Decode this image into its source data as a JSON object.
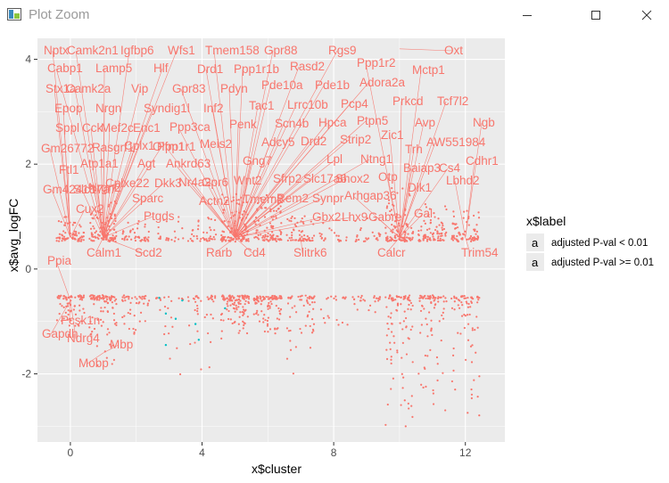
{
  "window": {
    "title": "Plot Zoom",
    "icon": "chart-window-icon"
  },
  "colors": {
    "sig": "#f8766d",
    "nonsig": "#00bfc4",
    "panel": "#ebebeb",
    "grid": "#ffffff"
  },
  "chart_data": {
    "type": "scatter",
    "xlabel": "x$cluster",
    "ylabel": "x$avg_logFC",
    "xlim": [
      -1,
      13.2
    ],
    "ylim": [
      -3.3,
      4.4
    ],
    "xticks": [
      0,
      4,
      8,
      12
    ],
    "yticks": [
      -2,
      0,
      2,
      4
    ],
    "legend": {
      "title": "x$label",
      "position": "right",
      "entries": [
        {
          "key": "a",
          "label": "adjusted P-val < 0.01",
          "color": "#f8766d"
        },
        {
          "key": "a",
          "label": "adjusted P-val >= 0.01",
          "color": "#00bfc4"
        }
      ]
    },
    "point_groups": [
      {
        "cluster": 0,
        "n": 70,
        "pos": [
          0.52,
          1.0
        ],
        "neg": [
          -1.05,
          -0.5
        ],
        "label": "adjusted P-val < 0.01"
      },
      {
        "cluster": 1,
        "n": 95,
        "pos": [
          0.52,
          1.3
        ],
        "neg": [
          -1.8,
          -0.5
        ],
        "label": "adjusted P-val < 0.01"
      },
      {
        "cluster": 2,
        "n": 45,
        "pos": [
          0.52,
          0.9
        ],
        "neg": [
          -1.3,
          -0.5
        ],
        "label": "adjusted P-val < 0.01"
      },
      {
        "cluster": 3,
        "n": 22,
        "pos": [
          0.52,
          1.0
        ],
        "neg": [
          -2.4,
          -0.5
        ],
        "label": "adjusted P-val < 0.01"
      },
      {
        "cluster": 4,
        "n": 40,
        "pos": [
          0.52,
          1.0
        ],
        "neg": [
          -1.9,
          -0.5
        ],
        "label": "adjusted P-val < 0.01"
      },
      {
        "cluster": 5,
        "n": 110,
        "pos": [
          0.52,
          1.4
        ],
        "neg": [
          -1.3,
          -0.5
        ],
        "label": "adjusted P-val < 0.01"
      },
      {
        "cluster": 6,
        "n": 100,
        "pos": [
          0.52,
          1.4
        ],
        "neg": [
          -1.2,
          -0.5
        ],
        "label": "adjusted P-val < 0.01"
      },
      {
        "cluster": 7,
        "n": 55,
        "pos": [
          0.52,
          1.0
        ],
        "neg": [
          -2.0,
          -0.5
        ],
        "label": "adjusted P-val < 0.01"
      },
      {
        "cluster": 8,
        "n": 20,
        "pos": [
          0.52,
          0.9
        ],
        "neg": [
          -1.2,
          -0.5
        ],
        "label": "adjusted P-val < 0.01"
      },
      {
        "cluster": 9,
        "n": 25,
        "pos": [
          0.52,
          0.9
        ],
        "neg": [
          -0.8,
          -0.5
        ],
        "label": "adjusted P-val < 0.01"
      },
      {
        "cluster": 10,
        "n": 95,
        "pos": [
          0.52,
          1.5
        ],
        "neg": [
          -3.0,
          -0.5
        ],
        "label": "adjusted P-val < 0.01"
      },
      {
        "cluster": 11,
        "n": 80,
        "pos": [
          0.52,
          1.2
        ],
        "neg": [
          -2.7,
          -0.5
        ],
        "label": "adjusted P-val < 0.01"
      },
      {
        "cluster": 12,
        "n": 75,
        "pos": [
          0.52,
          1.1
        ],
        "neg": [
          -2.8,
          -0.5
        ],
        "label": "adjusted P-val < 0.01"
      }
    ],
    "nonsig_points": [
      {
        "x": 2.7,
        "y": -0.55
      },
      {
        "x": 2.9,
        "y": -0.85
      },
      {
        "x": 3.4,
        "y": -0.6
      },
      {
        "x": 3.8,
        "y": -1.05
      },
      {
        "x": 3.9,
        "y": -1.35
      },
      {
        "x": 2.9,
        "y": -1.45
      },
      {
        "x": 4.7,
        "y": -0.75
      },
      {
        "x": 3.2,
        "y": -0.95
      }
    ],
    "labeled_genes": [
      {
        "gene": "Nptx",
        "x": 0,
        "y": 0.6
      },
      {
        "gene": "Camk2n1",
        "x": 1,
        "y": 0.6
      },
      {
        "gene": "Igfbp6",
        "x": 1,
        "y": 0.6
      },
      {
        "gene": "Wfs1",
        "x": 1,
        "y": 0.6
      },
      {
        "gene": "Tmem158",
        "x": 5,
        "y": 0.6
      },
      {
        "gene": "Gpr88",
        "x": 5,
        "y": 0.6
      },
      {
        "gene": "Rgs9",
        "x": 5,
        "y": 0.6
      },
      {
        "gene": "Oxt",
        "x": 10,
        "y": 4.2
      },
      {
        "gene": "Cabp1",
        "x": 1,
        "y": 0.6
      },
      {
        "gene": "Lamp5",
        "x": 1,
        "y": 0.6
      },
      {
        "gene": "Hlf",
        "x": 1,
        "y": 0.6
      },
      {
        "gene": "Drd1",
        "x": 5,
        "y": 0.6
      },
      {
        "gene": "Ppp1r1b",
        "x": 5,
        "y": 0.6
      },
      {
        "gene": "Rasd2",
        "x": 5,
        "y": 0.6
      },
      {
        "gene": "Ppp1r2",
        "x": 10,
        "y": 0.6
      },
      {
        "gene": "Mctp1",
        "x": 10,
        "y": 0.6
      },
      {
        "gene": "Stx1a",
        "x": 0,
        "y": 0.6
      },
      {
        "gene": "Camk2a",
        "x": 1,
        "y": 0.6
      },
      {
        "gene": "Vip",
        "x": 1,
        "y": 0.6
      },
      {
        "gene": "Gpr83",
        "x": 5,
        "y": 0.6
      },
      {
        "gene": "Pdyn",
        "x": 5,
        "y": 0.6
      },
      {
        "gene": "Pde10a",
        "x": 5,
        "y": 0.6
      },
      {
        "gene": "Pde1b",
        "x": 5,
        "y": 0.6
      },
      {
        "gene": "Adora2a",
        "x": 5,
        "y": 0.6
      },
      {
        "gene": "Epop",
        "x": 0,
        "y": 0.6
      },
      {
        "gene": "Nrgn",
        "x": 1,
        "y": 0.6
      },
      {
        "gene": "Syndig1l",
        "x": 1,
        "y": 0.6
      },
      {
        "gene": "Inf2",
        "x": 5,
        "y": 0.6
      },
      {
        "gene": "Tac1",
        "x": 5,
        "y": 0.6
      },
      {
        "gene": "Lrrc10b",
        "x": 5,
        "y": 0.6
      },
      {
        "gene": "Pcp4",
        "x": 5,
        "y": 0.6
      },
      {
        "gene": "Prkcd",
        "x": 10,
        "y": 0.6
      },
      {
        "gene": "Tcf7l2",
        "x": 10,
        "y": 0.6
      },
      {
        "gene": "Sppl",
        "x": 0,
        "y": 0.6
      },
      {
        "gene": "Cck",
        "x": 1,
        "y": 0.6
      },
      {
        "gene": "Mef2c",
        "x": 1,
        "y": 0.6
      },
      {
        "gene": "Enc1",
        "x": 1,
        "y": 0.6
      },
      {
        "gene": "Ppp3ca",
        "x": 5,
        "y": 0.6
      },
      {
        "gene": "Penk",
        "x": 5,
        "y": 0.6
      },
      {
        "gene": "Scn4b",
        "x": 5,
        "y": 0.6
      },
      {
        "gene": "Hpca",
        "x": 5,
        "y": 0.6
      },
      {
        "gene": "Ptpn5",
        "x": 5,
        "y": 0.6
      },
      {
        "gene": "Avp",
        "x": 10,
        "y": 0.6
      },
      {
        "gene": "Ngb",
        "x": 12,
        "y": 0.6
      },
      {
        "gene": "Zic1",
        "x": 10,
        "y": 0.6
      },
      {
        "gene": "Gm26772",
        "x": 0,
        "y": 0.6
      },
      {
        "gene": "Rasgrf1",
        "x": 1,
        "y": 0.6
      },
      {
        "gene": "Cplx1",
        "x": 1,
        "y": 0.6
      },
      {
        "gene": "Olfm1",
        "x": 1,
        "y": 0.6
      },
      {
        "gene": "Ppp1r1",
        "x": 5,
        "y": 0.6
      },
      {
        "gene": "Meis2",
        "x": 5,
        "y": 0.6
      },
      {
        "gene": "Adcy5",
        "x": 5,
        "y": 0.6
      },
      {
        "gene": "Drd2",
        "x": 5,
        "y": 0.6
      },
      {
        "gene": "Strip2",
        "x": 5,
        "y": 0.6
      },
      {
        "gene": "Trh",
        "x": 10,
        "y": 0.6
      },
      {
        "gene": "AW551984",
        "x": 10,
        "y": 0.6
      },
      {
        "gene": "Ftl1",
        "x": 0,
        "y": 0.6
      },
      {
        "gene": "Atp1a1",
        "x": 1,
        "y": 0.6
      },
      {
        "gene": "Agt",
        "x": 1,
        "y": 0.6
      },
      {
        "gene": "Ankrd63",
        "x": 5,
        "y": 0.6
      },
      {
        "gene": "Gng7",
        "x": 5,
        "y": 0.6
      },
      {
        "gene": "Lpl",
        "x": 5,
        "y": 0.6
      },
      {
        "gene": "Ntng1",
        "x": 5,
        "y": 0.6
      },
      {
        "gene": "Baiap3",
        "x": 10,
        "y": 0.6
      },
      {
        "gene": "Cs4",
        "x": 10,
        "y": 0.6
      },
      {
        "gene": "Cdhr1",
        "x": 12,
        "y": 0.6
      },
      {
        "gene": "Gm42418",
        "x": 0,
        "y": 0.6
      },
      {
        "gene": "Slc17a7",
        "x": 1,
        "y": 0.6
      },
      {
        "gene": "Nrgn2",
        "x": 1,
        "y": 0.6
      },
      {
        "gene": "Cplxe22",
        "x": 1,
        "y": 0.6
      },
      {
        "gene": "Dkk3",
        "x": 1,
        "y": 0.6
      },
      {
        "gene": "Nr4a2",
        "x": 5,
        "y": 0.6
      },
      {
        "gene": "Gpr6",
        "x": 5,
        "y": 0.6
      },
      {
        "gene": "Wnt2",
        "x": 5,
        "y": 0.6
      },
      {
        "gene": "Sfrp2",
        "x": 5,
        "y": 0.6
      },
      {
        "gene": "Slc17a6",
        "x": 5,
        "y": 0.6
      },
      {
        "gene": "Shox2",
        "x": 5,
        "y": 0.6
      },
      {
        "gene": "Otp",
        "x": 10,
        "y": 0.6
      },
      {
        "gene": "Lbhd2",
        "x": 12,
        "y": 0.6
      },
      {
        "gene": "Cux2",
        "x": 0,
        "y": 0.6
      },
      {
        "gene": "Sparc",
        "x": 1,
        "y": 0.6
      },
      {
        "gene": "Ptgds",
        "x": 1,
        "y": 0.6
      },
      {
        "gene": "Actn2",
        "x": 5,
        "y": 0.6
      },
      {
        "gene": "Tmem2",
        "x": 5,
        "y": 0.6
      },
      {
        "gene": "Rem2",
        "x": 5,
        "y": 0.6
      },
      {
        "gene": "Synpr",
        "x": 5,
        "y": 0.6
      },
      {
        "gene": "Arhgap36",
        "x": 10,
        "y": 0.6
      },
      {
        "gene": "Dlk1",
        "x": 10,
        "y": 0.6
      },
      {
        "gene": "Gbx2",
        "x": 5,
        "y": 0.6
      },
      {
        "gene": "Lhx9",
        "x": 5,
        "y": 0.6
      },
      {
        "gene": "Gabre",
        "x": 10,
        "y": 0.6
      },
      {
        "gene": "Gal",
        "x": 10,
        "y": 0.6
      },
      {
        "gene": "Calm1",
        "x": 1,
        "y": 0.6
      },
      {
        "gene": "Scd2",
        "x": 1,
        "y": 0.6
      },
      {
        "gene": "Rarb",
        "x": 5,
        "y": 0.6
      },
      {
        "gene": "Cd4",
        "x": 5,
        "y": 0.6
      },
      {
        "gene": "Slitrk6",
        "x": 7,
        "y": 0.6
      },
      {
        "gene": "Calcr",
        "x": 10,
        "y": 0.6
      },
      {
        "gene": "Trim54",
        "x": 12,
        "y": 0.6
      },
      {
        "gene": "Ppia",
        "x": 0,
        "y": -0.6
      },
      {
        "gene": "Pcsk1n",
        "x": 0,
        "y": -0.6
      },
      {
        "gene": "Gapdh",
        "x": 0,
        "y": -0.6
      },
      {
        "gene": "Ndrg4",
        "x": 0,
        "y": -0.6
      },
      {
        "gene": "Mbp",
        "x": 1,
        "y": -1.6
      },
      {
        "gene": "Mobp",
        "x": 1,
        "y": -1.6
      }
    ]
  }
}
